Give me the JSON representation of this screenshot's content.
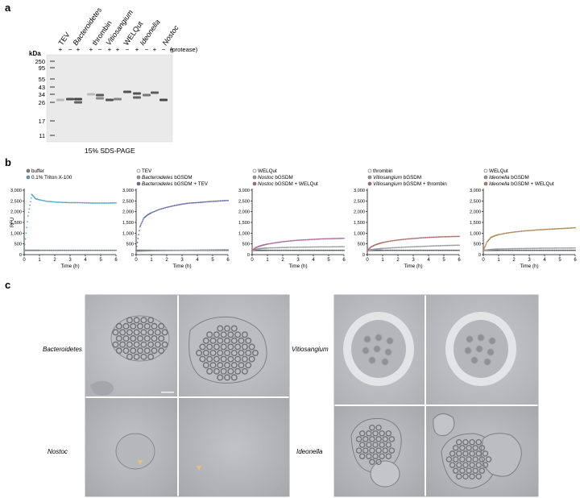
{
  "figure": {
    "panel_labels": [
      "a",
      "b",
      "c"
    ]
  },
  "panel_a": {
    "kda_label": "kDa",
    "markers": [
      "250",
      "95",
      "55",
      "43",
      "34",
      "26",
      "17",
      "11"
    ],
    "lane_headers": [
      "TEV",
      "Bacteroidetes",
      "thrombin",
      "Vitiosangium",
      "WELQut",
      "Ideonella",
      "Nostoc"
    ],
    "lane_headers_italic": [
      false,
      true,
      false,
      true,
      false,
      true,
      true
    ],
    "protease_signs": [
      "+",
      "−",
      "+",
      "+",
      "−",
      "+",
      "+",
      "−",
      "+",
      "−",
      "+",
      "−",
      "+"
    ],
    "protease_label": "(protease)",
    "caption": "15% SDS-PAGE"
  },
  "panel_b": {
    "y_axis_label": "RFU",
    "x_axis_label": "Time (h)",
    "y_ticks": [
      "0",
      "500",
      "1,000",
      "1,500",
      "2,000",
      "2,500",
      "3,000"
    ],
    "x_ticks": [
      "0",
      "1",
      "2",
      "3",
      "4",
      "5",
      "6"
    ]
  },
  "chart_data": [
    {
      "type": "scatter",
      "legend": [
        {
          "text": "buffer",
          "color": "#7c7f88"
        },
        {
          "text": "0.1% Triton X-100",
          "color": "#5aa6c4"
        }
      ],
      "x": [
        0,
        0.25,
        0.5,
        0.75,
        1,
        1.5,
        2,
        2.5,
        3,
        3.5,
        4,
        4.5,
        5,
        5.5,
        6
      ],
      "series": [
        {
          "name": "buffer",
          "values": [
            200,
            200,
            200,
            200,
            200,
            200,
            200,
            200,
            200,
            200,
            200,
            200,
            200,
            200,
            200
          ]
        },
        {
          "name": "0.1% Triton X-100",
          "values": [
            200,
            1800,
            2800,
            2600,
            2550,
            2480,
            2450,
            2430,
            2420,
            2420,
            2410,
            2400,
            2400,
            2400,
            2410
          ]
        }
      ],
      "xlabel": "Time (h)",
      "ylabel": "RFU",
      "xlim": [
        0,
        6
      ],
      "ylim": [
        0,
        3000
      ],
      "grid": false
    },
    {
      "type": "scatter",
      "legend": [
        {
          "text": "TEV",
          "italic": "",
          "color": "#ffffff"
        },
        {
          "text": " bGSDM",
          "italic": "Bacteroidetes",
          "color": "#9a9da4"
        },
        {
          "text": " bGSDM + TEV",
          "italic": "Bacteroidetes",
          "color": "#6a6fa8"
        }
      ],
      "x": [
        0,
        0.25,
        0.5,
        0.75,
        1,
        1.5,
        2,
        2.5,
        3,
        3.5,
        4,
        4.5,
        5,
        5.5,
        6
      ],
      "series": [
        {
          "name": "TEV",
          "values": [
            200,
            200,
            200,
            200,
            200,
            200,
            200,
            200,
            200,
            200,
            200,
            200,
            200,
            200,
            200
          ]
        },
        {
          "name": "Bacteroidetes bGSDM",
          "values": [
            150,
            160,
            170,
            175,
            180,
            185,
            190,
            195,
            200,
            205,
            210,
            215,
            220,
            225,
            230
          ]
        },
        {
          "name": "Bacteroidetes bGSDM + TEV",
          "values": [
            200,
            1300,
            1700,
            1850,
            1950,
            2100,
            2200,
            2280,
            2350,
            2400,
            2420,
            2450,
            2480,
            2500,
            2520
          ]
        }
      ],
      "xlabel": "Time (h)",
      "ylabel": "",
      "xlim": [
        0,
        6
      ],
      "ylim": [
        0,
        3000
      ],
      "grid": false
    },
    {
      "type": "scatter",
      "legend": [
        {
          "text": "WELQut",
          "italic": "",
          "color": "#ffffff"
        },
        {
          "text": " bGSDM",
          "italic": "Nostoc",
          "color": "#9a9da4"
        },
        {
          "text": " bGSDM + WELQut",
          "italic": "Nostoc",
          "color": "#b06a9a"
        }
      ],
      "x": [
        0,
        0.25,
        0.5,
        0.75,
        1,
        1.5,
        2,
        2.5,
        3,
        3.5,
        4,
        4.5,
        5,
        5.5,
        6
      ],
      "series": [
        {
          "name": "WELQut",
          "values": [
            200,
            200,
            200,
            200,
            200,
            200,
            200,
            200,
            200,
            200,
            200,
            200,
            200,
            200,
            200
          ]
        },
        {
          "name": "Nostoc bGSDM",
          "values": [
            200,
            250,
            280,
            300,
            310,
            320,
            330,
            340,
            345,
            350,
            355,
            360,
            360,
            365,
            370
          ]
        },
        {
          "name": "Nostoc bGSDM + WELQut",
          "values": [
            200,
            330,
            400,
            450,
            490,
            550,
            600,
            640,
            670,
            690,
            710,
            730,
            740,
            750,
            760
          ]
        }
      ],
      "xlabel": "Time (h)",
      "ylabel": "",
      "xlim": [
        0,
        6
      ],
      "ylim": [
        0,
        3000
      ],
      "grid": false
    },
    {
      "type": "scatter",
      "legend": [
        {
          "text": "thrombin",
          "italic": "",
          "color": "#ffffff"
        },
        {
          "text": " bGSDM",
          "italic": "Vitiosangium",
          "color": "#9a9da4"
        },
        {
          "text": " bGSDM + thrombin",
          "italic": "Vitiosangium",
          "color": "#b0706e"
        }
      ],
      "x": [
        0,
        0.25,
        0.5,
        0.75,
        1,
        1.5,
        2,
        2.5,
        3,
        3.5,
        4,
        4.5,
        5,
        5.5,
        6
      ],
      "series": [
        {
          "name": "thrombin",
          "values": [
            200,
            200,
            200,
            200,
            200,
            200,
            200,
            200,
            200,
            200,
            200,
            200,
            200,
            200,
            200
          ]
        },
        {
          "name": "Vitiosangium bGSDM",
          "values": [
            200,
            230,
            250,
            270,
            290,
            310,
            330,
            350,
            365,
            380,
            395,
            410,
            420,
            430,
            440
          ]
        },
        {
          "name": "Vitiosangium bGSDM + thrombin",
          "values": [
            200,
            360,
            450,
            510,
            560,
            630,
            680,
            720,
            750,
            780,
            800,
            820,
            830,
            840,
            850
          ]
        }
      ],
      "xlabel": "Time (h)",
      "ylabel": "",
      "xlim": [
        0,
        6
      ],
      "ylim": [
        0,
        3000
      ],
      "grid": false
    },
    {
      "type": "scatter",
      "legend": [
        {
          "text": "WELQut",
          "italic": "",
          "color": "#ffffff"
        },
        {
          "text": " bGSDM",
          "italic": "Ideonella",
          "color": "#9a9da4"
        },
        {
          "text": " bGSDM + WELQut",
          "italic": "Ideonella",
          "color": "#b08a5a"
        }
      ],
      "x": [
        0,
        0.25,
        0.5,
        0.75,
        1,
        1.5,
        2,
        2.5,
        3,
        3.5,
        4,
        4.5,
        5,
        5.5,
        6
      ],
      "series": [
        {
          "name": "WELQut",
          "values": [
            200,
            200,
            200,
            200,
            200,
            200,
            200,
            200,
            200,
            200,
            200,
            200,
            200,
            200,
            200
          ]
        },
        {
          "name": "Ideonella bGSDM",
          "values": [
            200,
            220,
            240,
            250,
            260,
            270,
            280,
            285,
            290,
            295,
            300,
            300,
            305,
            305,
            310
          ]
        },
        {
          "name": "Ideonella bGSDM + WELQut",
          "values": [
            200,
            600,
            800,
            880,
            930,
            1000,
            1050,
            1090,
            1120,
            1150,
            1170,
            1190,
            1210,
            1230,
            1250
          ]
        }
      ],
      "xlabel": "Time (h)",
      "ylabel": "",
      "xlim": [
        0,
        6
      ],
      "ylim": [
        0,
        3000
      ],
      "grid": false
    }
  ],
  "panel_c": {
    "species_labels": [
      "Bacteroidetes",
      "Nostoc",
      "Vitiosangium",
      "Ideonella"
    ]
  }
}
